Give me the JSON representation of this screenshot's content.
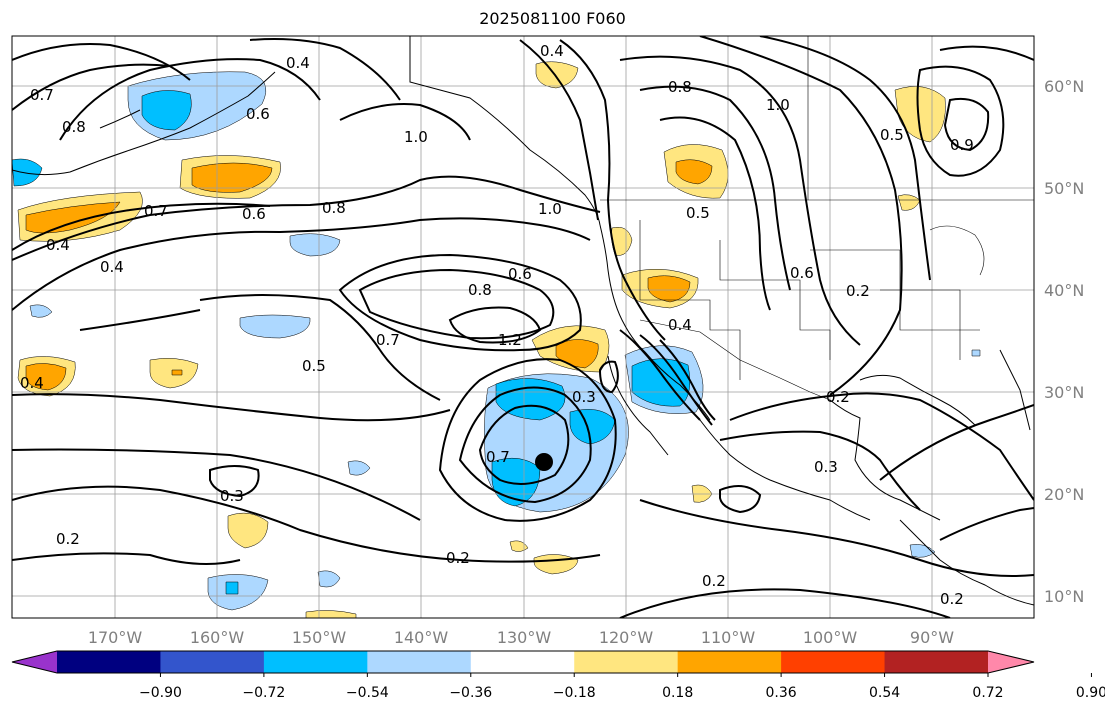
{
  "title": "2025081100 F060",
  "lon_ticks": [
    "170°W",
    "160°W",
    "150°W",
    "140°W",
    "130°W",
    "120°W",
    "110°W",
    "100°W",
    "90°W"
  ],
  "lat_ticks": [
    "60°N",
    "50°N",
    "40°N",
    "30°N",
    "20°N",
    "10°N"
  ],
  "colorbar": {
    "colors": [
      "#9933cc",
      "#000080",
      "#3355cc",
      "#00bfff",
      "#add8ff",
      "#ffffff",
      "#ffe680",
      "#ffa500",
      "#ff4000",
      "#b22222",
      "#ff88aa"
    ],
    "tick_labels": [
      "−0.90",
      "−0.72",
      "−0.54",
      "−0.36",
      "−0.18",
      "0.18",
      "0.36",
      "0.54",
      "0.72",
      "0.90"
    ]
  },
  "contour_labels": [
    {
      "text": "0.4"
    },
    {
      "text": "0.7"
    },
    {
      "text": "0.8"
    },
    {
      "text": "1.0"
    },
    {
      "text": "0.6"
    },
    {
      "text": "0.8"
    },
    {
      "text": "1.0"
    },
    {
      "text": "0.7"
    },
    {
      "text": "0.6"
    },
    {
      "text": "0.4"
    },
    {
      "text": "0.6"
    },
    {
      "text": "0.8"
    },
    {
      "text": "0.7"
    },
    {
      "text": "1.2"
    },
    {
      "text": "0.5"
    },
    {
      "text": "0.3"
    },
    {
      "text": "0.7"
    },
    {
      "text": "0.3"
    },
    {
      "text": "0.2"
    },
    {
      "text": "0.2"
    },
    {
      "text": "0.2"
    },
    {
      "text": "0.2"
    },
    {
      "text": "0.2"
    },
    {
      "text": "0.3"
    },
    {
      "text": "0.8"
    },
    {
      "text": "0.4"
    },
    {
      "text": "0.2"
    },
    {
      "text": "0.4"
    },
    {
      "text": "0.6"
    },
    {
      "text": "0.4"
    },
    {
      "text": "0.4"
    },
    {
      "text": "0.5"
    },
    {
      "text": "0.9"
    },
    {
      "text": "1.0"
    },
    {
      "text": "0.5"
    }
  ],
  "marker": {
    "shape": "filled circle",
    "color": "#000000"
  }
}
